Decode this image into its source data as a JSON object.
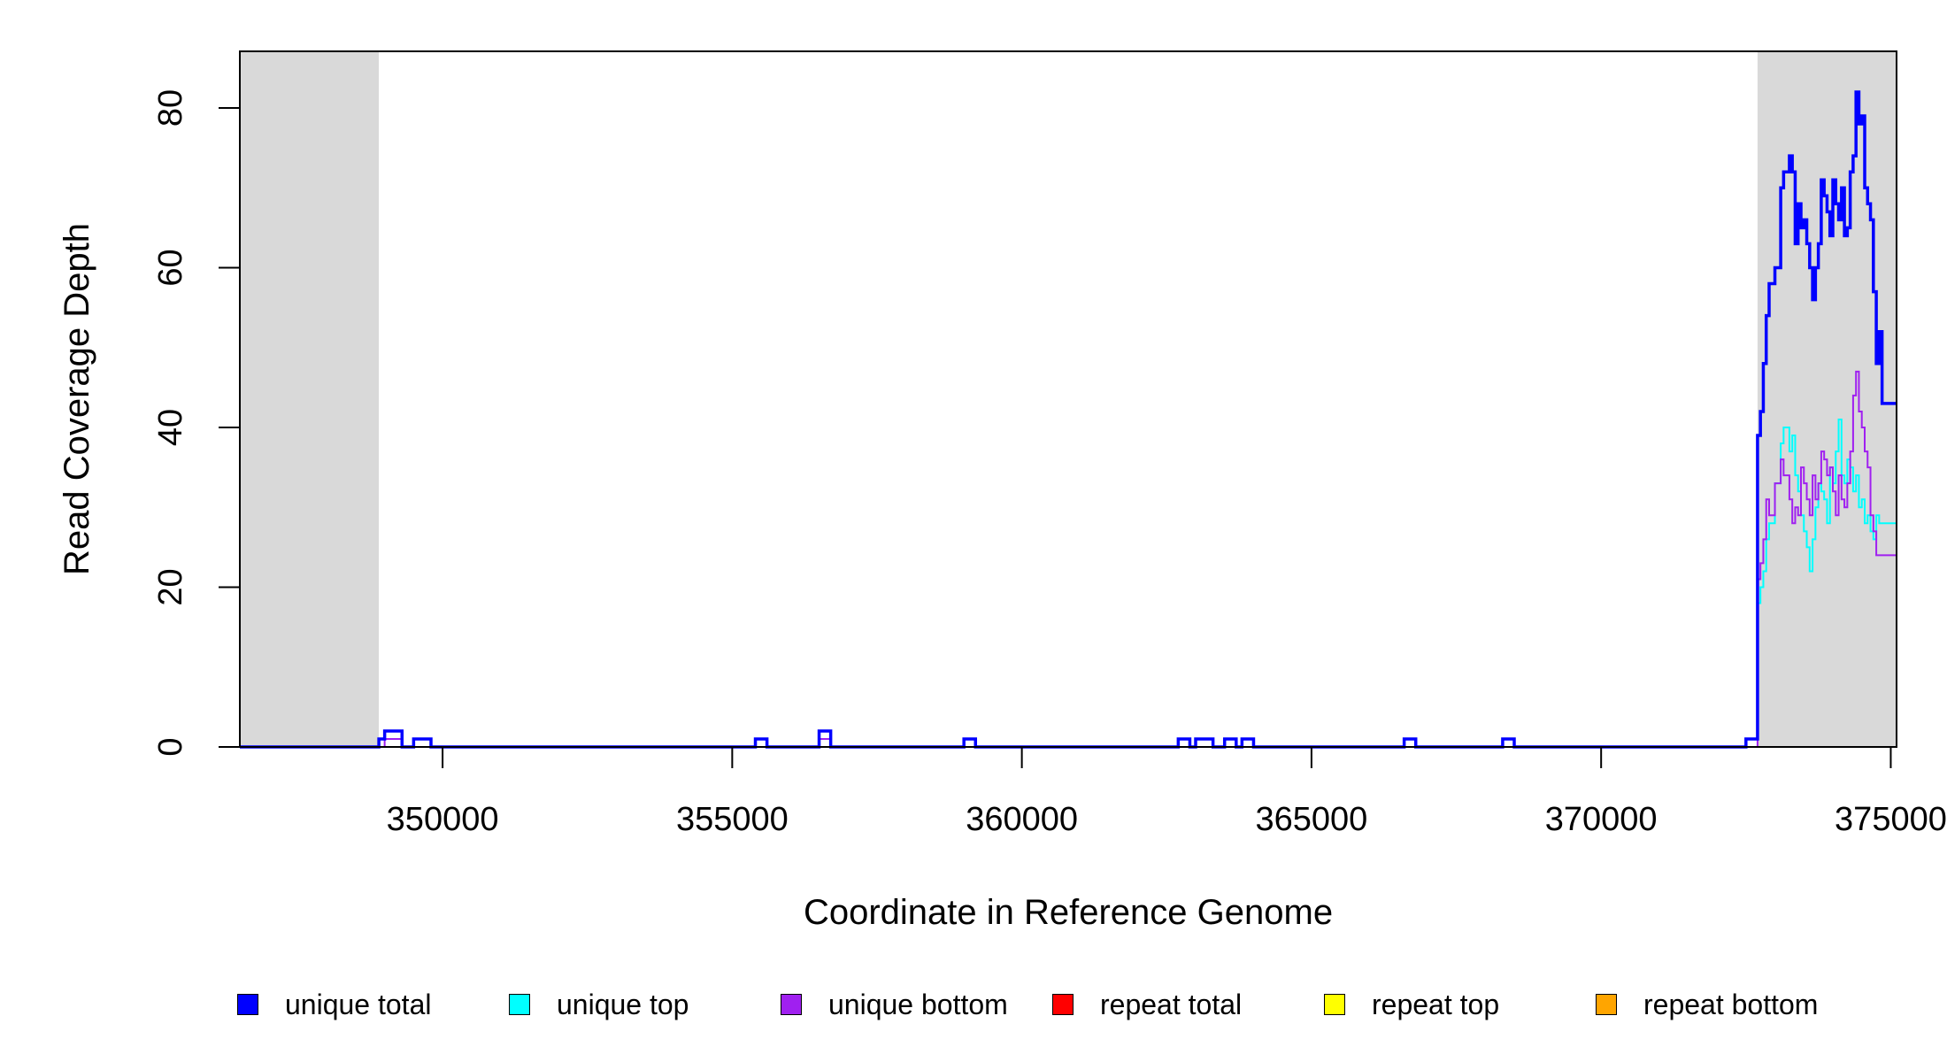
{
  "chart_data": {
    "type": "line",
    "xlabel": "Coordinate in Reference Genome",
    "ylabel": "Read Coverage Depth",
    "xlim": [
      346500,
      375100
    ],
    "ylim": [
      0,
      85
    ],
    "x_ticks": [
      350000,
      355000,
      360000,
      365000,
      370000,
      375000
    ],
    "x_tick_labels": [
      "350000",
      "355000",
      "360000",
      "365000",
      "370000",
      "375000"
    ],
    "y_ticks": [
      0,
      20,
      40,
      60,
      80
    ],
    "y_tick_labels": [
      "0",
      "20",
      "40",
      "60",
      "80"
    ],
    "shaded_regions": [
      [
        346500,
        348900
      ],
      [
        372700,
        375100
      ]
    ],
    "shade_color": "#d9d9d9",
    "legend_position": "bottom",
    "series": [
      {
        "name": "unique total",
        "color": "#0000ff",
        "width": 3.5,
        "x": [
          346500,
          348900,
          349000,
          349300,
          349500,
          349800,
          355400,
          355600,
          356500,
          356700,
          359000,
          359200,
          362700,
          362900,
          363000,
          363300,
          363500,
          363700,
          363800,
          364000,
          366600,
          366800,
          368300,
          368500,
          372500,
          372700,
          372750,
          372800,
          372850,
          372900,
          373000,
          373100,
          373150,
          373250,
          373300,
          373350,
          373400,
          373450,
          373500,
          373550,
          373600,
          373650,
          373700,
          373750,
          373800,
          373850,
          373900,
          373950,
          374000,
          374050,
          374100,
          374150,
          374200,
          374250,
          374300,
          374350,
          374400,
          374450,
          374500,
          374550,
          374600,
          374650,
          374700,
          374750,
          374800,
          374850,
          374900,
          374950,
          375000,
          375050
        ],
        "y": [
          0,
          1,
          2,
          0,
          1,
          0,
          1,
          0,
          2,
          0,
          1,
          0,
          1,
          0,
          1,
          0,
          1,
          0,
          1,
          0,
          1,
          0,
          1,
          0,
          1,
          39,
          42,
          48,
          54,
          58,
          60,
          70,
          72,
          74,
          72,
          63,
          68,
          65,
          66,
          63,
          60,
          56,
          60,
          63,
          71,
          69,
          67,
          64,
          71,
          68,
          66,
          70,
          64,
          65,
          72,
          74,
          82,
          78,
          79,
          70,
          68,
          66,
          57,
          48,
          52,
          43,
          43,
          43,
          43,
          43
        ]
      },
      {
        "name": "unique top",
        "color": "#00ffff",
        "width": 2,
        "x": [
          346500,
          348900,
          349000,
          349300,
          349500,
          349800,
          355400,
          355600,
          356500,
          356700,
          359000,
          359200,
          362700,
          362900,
          363000,
          363300,
          363500,
          363700,
          363800,
          364000,
          366600,
          366800,
          368300,
          368500,
          372500,
          372700,
          372750,
          372800,
          372850,
          372900,
          373000,
          373100,
          373150,
          373250,
          373300,
          373350,
          373400,
          373450,
          373500,
          373550,
          373600,
          373650,
          373700,
          373750,
          373800,
          373850,
          373900,
          373950,
          374000,
          374050,
          374100,
          374150,
          374200,
          374250,
          374300,
          374350,
          374400,
          374450,
          374500,
          374550,
          374600,
          374650,
          374700,
          374750,
          374800,
          374850,
          374900,
          374950,
          375000,
          375050
        ],
        "y": [
          0,
          1,
          1,
          0,
          0,
          0,
          1,
          0,
          1,
          0,
          0,
          0,
          1,
          0,
          0,
          0,
          1,
          0,
          0,
          0,
          0,
          0,
          0,
          0,
          1,
          18,
          20,
          22,
          26,
          28,
          33,
          38,
          40,
          37,
          39,
          34,
          32,
          29,
          27,
          25,
          22,
          26,
          30,
          33,
          32,
          31,
          28,
          35,
          33,
          37,
          41,
          34,
          33,
          36,
          35,
          32,
          34,
          30,
          31,
          28,
          29,
          27,
          26,
          29,
          28,
          28,
          28,
          28,
          28,
          28
        ]
      },
      {
        "name": "unique bottom",
        "color": "#a020f0",
        "width": 2,
        "x": [
          346500,
          348900,
          349000,
          349300,
          349500,
          349800,
          355400,
          355600,
          356500,
          356700,
          359000,
          359200,
          362700,
          362900,
          363000,
          363300,
          363500,
          363700,
          363800,
          364000,
          366600,
          366800,
          368300,
          368500,
          372500,
          372700,
          372750,
          372800,
          372850,
          372900,
          373000,
          373100,
          373150,
          373250,
          373300,
          373350,
          373400,
          373450,
          373500,
          373550,
          373600,
          373650,
          373700,
          373750,
          373800,
          373850,
          373900,
          373950,
          374000,
          374050,
          374100,
          374150,
          374200,
          374250,
          374300,
          374350,
          374400,
          374450,
          374500,
          374550,
          374600,
          374650,
          374700,
          374750,
          374800,
          374850,
          374900,
          374950,
          375000,
          375050
        ],
        "y": [
          0,
          0,
          1,
          0,
          1,
          0,
          0,
          0,
          1,
          0,
          1,
          0,
          0,
          0,
          1,
          0,
          0,
          0,
          1,
          0,
          1,
          0,
          1,
          0,
          0,
          21,
          23,
          26,
          31,
          29,
          33,
          36,
          34,
          31,
          28,
          30,
          29,
          35,
          33,
          31,
          29,
          34,
          31,
          33,
          37,
          36,
          34,
          35,
          32,
          29,
          34,
          31,
          30,
          33,
          37,
          44,
          47,
          42,
          40,
          37,
          35,
          29,
          27,
          24,
          24,
          24,
          24,
          24,
          24,
          24
        ]
      },
      {
        "name": "repeat total",
        "color": "#ff0000",
        "width": 2,
        "x": [
          346500,
          375050
        ],
        "y": [
          0,
          0
        ]
      },
      {
        "name": "repeat top",
        "color": "#ffff00",
        "width": 2,
        "x": [
          346500,
          375050
        ],
        "y": [
          0,
          0
        ]
      },
      {
        "name": "repeat bottom",
        "color": "#ffa500",
        "width": 2,
        "x": [
          346500,
          375050
        ],
        "y": [
          0,
          0
        ]
      }
    ]
  }
}
